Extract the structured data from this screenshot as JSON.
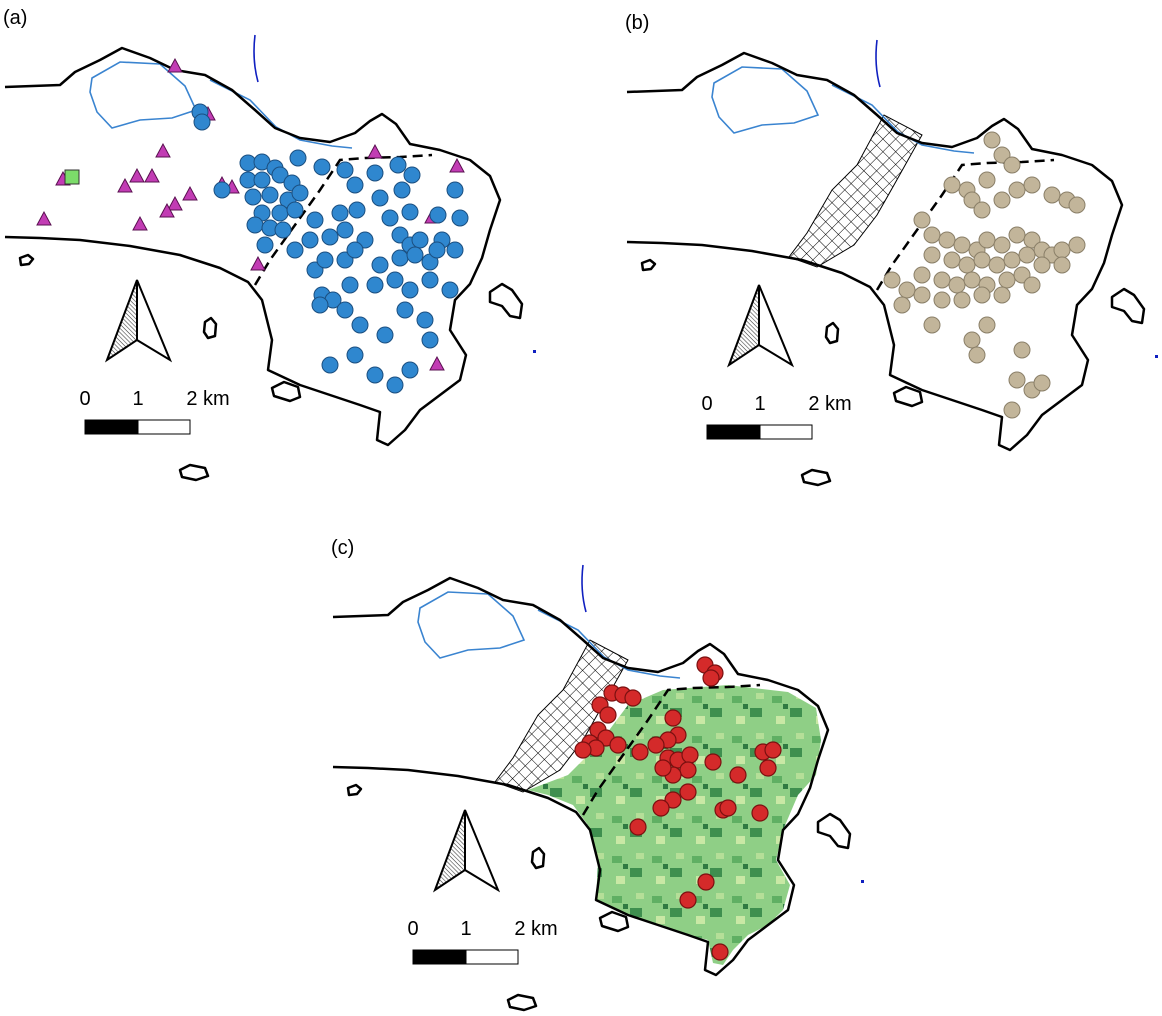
{
  "panels": [
    {
      "label": "(a)",
      "scale_labels": [
        "0",
        "1",
        "2 km"
      ]
    },
    {
      "label": "(b)",
      "scale_labels": [
        "0",
        "1",
        "2 km"
      ]
    },
    {
      "label": "(c)",
      "scale_labels": [
        "0",
        "1",
        "2 km"
      ]
    }
  ]
}
